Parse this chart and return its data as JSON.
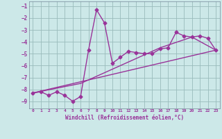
{
  "xlabel": "Windchill (Refroidissement éolien,°C)",
  "bg_color": "#cce8e8",
  "line_color": "#993399",
  "grid_color": "#99bbbb",
  "xlim": [
    -0.5,
    23.5
  ],
  "ylim": [
    -9.6,
    -0.6
  ],
  "yticks": [
    -9,
    -8,
    -7,
    -6,
    -5,
    -4,
    -3,
    -2,
    -1
  ],
  "xticks": [
    0,
    1,
    2,
    3,
    4,
    5,
    6,
    7,
    8,
    9,
    10,
    11,
    12,
    13,
    14,
    15,
    16,
    17,
    18,
    19,
    20,
    21,
    22,
    23
  ],
  "data_x": [
    0,
    1,
    2,
    3,
    4,
    5,
    6,
    7,
    8,
    9,
    10,
    11,
    12,
    13,
    14,
    15,
    16,
    17,
    18,
    19,
    20,
    21,
    22,
    23
  ],
  "data_y": [
    -8.3,
    -8.2,
    -8.5,
    -8.2,
    -8.5,
    -9.0,
    -8.6,
    -4.7,
    -1.3,
    -2.4,
    -5.8,
    -5.3,
    -4.8,
    -4.9,
    -5.0,
    -5.0,
    -4.6,
    -4.5,
    -3.2,
    -3.5,
    -3.6,
    -3.5,
    -3.7,
    -4.7
  ],
  "trend1_x": [
    0,
    23
  ],
  "trend1_y": [
    -8.3,
    -4.7
  ],
  "trend2_x": [
    0,
    6,
    16,
    20,
    23
  ],
  "trend2_y": [
    -8.3,
    -7.5,
    -4.5,
    -3.6,
    -4.7
  ]
}
